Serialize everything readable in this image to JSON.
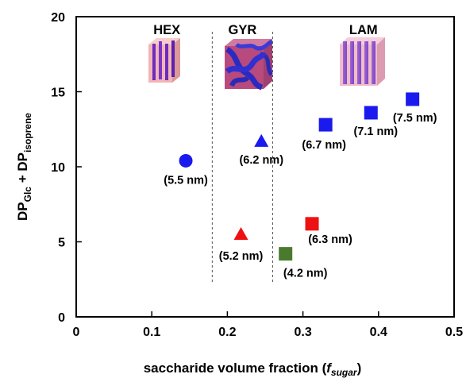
{
  "chart_data": {
    "type": "scatter",
    "xlabel": {
      "main": "saccharide volume fraction (",
      "var": "f",
      "sub": "sugar",
      "close": ")"
    },
    "ylabel": {
      "dp1": "DP",
      "sub1": "Glc",
      "mid": " + DP",
      "sub2": "isoprene"
    },
    "xlim": [
      0,
      0.5
    ],
    "ylim": [
      0,
      20
    ],
    "x_ticks": [
      "0",
      "0.1",
      "0.2",
      "0.3",
      "0.4",
      "0.5"
    ],
    "y_ticks": [
      "0",
      "5",
      "10",
      "15",
      "20"
    ],
    "phase_boundaries": [
      0.18,
      0.26
    ],
    "phases": [
      {
        "label": "HEX",
        "x": 0.12
      },
      {
        "label": "GYR",
        "x": 0.22
      },
      {
        "label": "LAM",
        "x": 0.38
      }
    ],
    "colors": {
      "blue": "#1a1aee",
      "red": "#ee1111",
      "green": "#4a7a2e"
    },
    "points": [
      {
        "x": 0.145,
        "y": 10.4,
        "shape": "circle",
        "color": "blue",
        "label": "(5.5 nm)"
      },
      {
        "x": 0.245,
        "y": 11.7,
        "shape": "triangle",
        "color": "blue",
        "label": "(6.2 nm)"
      },
      {
        "x": 0.33,
        "y": 12.8,
        "shape": "square",
        "color": "blue",
        "label": "(6.7 nm)"
      },
      {
        "x": 0.39,
        "y": 13.6,
        "shape": "square",
        "color": "blue",
        "label": "(7.1 nm)"
      },
      {
        "x": 0.445,
        "y": 14.5,
        "shape": "square",
        "color": "blue",
        "label": "(7.5 nm)"
      },
      {
        "x": 0.218,
        "y": 5.5,
        "shape": "triangle",
        "color": "red",
        "label": "(5.2 nm)"
      },
      {
        "x": 0.312,
        "y": 6.2,
        "shape": "square",
        "color": "red",
        "label": "(6.3 nm)"
      },
      {
        "x": 0.277,
        "y": 4.2,
        "shape": "square",
        "color": "green",
        "label": "(4.2 nm)"
      }
    ]
  }
}
